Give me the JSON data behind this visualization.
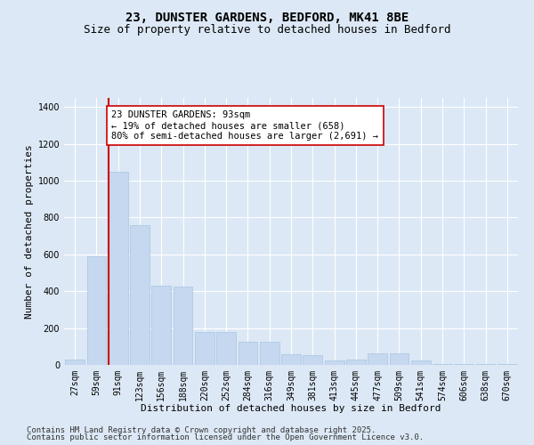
{
  "title_line1": "23, DUNSTER GARDENS, BEDFORD, MK41 8BE",
  "title_line2": "Size of property relative to detached houses in Bedford",
  "xlabel": "Distribution of detached houses by size in Bedford",
  "ylabel": "Number of detached properties",
  "categories": [
    "27sqm",
    "59sqm",
    "91sqm",
    "123sqm",
    "156sqm",
    "188sqm",
    "220sqm",
    "252sqm",
    "284sqm",
    "316sqm",
    "349sqm",
    "381sqm",
    "413sqm",
    "445sqm",
    "477sqm",
    "509sqm",
    "541sqm",
    "574sqm",
    "606sqm",
    "638sqm",
    "670sqm"
  ],
  "values": [
    30,
    590,
    1050,
    760,
    430,
    425,
    180,
    180,
    125,
    125,
    60,
    55,
    25,
    30,
    65,
    65,
    25,
    6,
    6,
    6,
    6
  ],
  "bar_color": "#c5d8f0",
  "bar_edgecolor": "#a8c4e0",
  "vline_color": "#cc0000",
  "annotation_text": "23 DUNSTER GARDENS: 93sqm\n← 19% of detached houses are smaller (658)\n80% of semi-detached houses are larger (2,691) →",
  "annotation_box_facecolor": "#ffffff",
  "annotation_box_edgecolor": "#cc0000",
  "ylim": [
    0,
    1450
  ],
  "yticks": [
    0,
    200,
    400,
    600,
    800,
    1000,
    1200,
    1400
  ],
  "bg_color": "#dce8f5",
  "plot_bg_color": "#dce8f5",
  "footer_line1": "Contains HM Land Registry data © Crown copyright and database right 2025.",
  "footer_line2": "Contains public sector information licensed under the Open Government Licence v3.0.",
  "title_fontsize": 10,
  "subtitle_fontsize": 9,
  "axis_label_fontsize": 8,
  "tick_fontsize": 7,
  "annotation_fontsize": 7.5,
  "footer_fontsize": 6.5,
  "vline_xindex": 2
}
